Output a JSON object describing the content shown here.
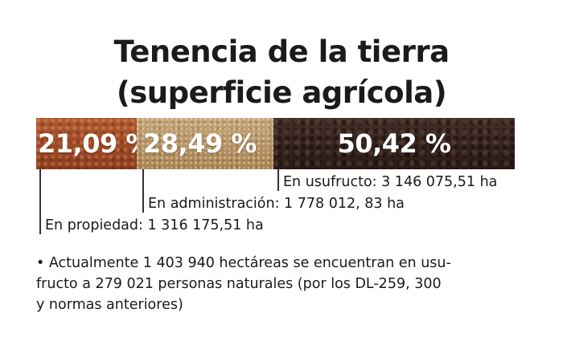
{
  "chart_data": {
    "type": "bar",
    "orientation": "horizontal-stacked",
    "title": "Tenencia de la tierra",
    "subtitle": "(superficie agrícola)",
    "categories": [
      "En propiedad",
      "En administración",
      "En usufructo"
    ],
    "values": [
      21.09,
      28.49,
      50.42
    ],
    "value_labels": [
      "21,09 %",
      "28,49 %",
      "50,42 %"
    ],
    "annotations": [
      "En propiedad: 1 316 175,51 ha",
      "En administración: 1 778 012, 83 ha",
      "En usufructo: 3 146 075,51 ha"
    ],
    "colors": [
      "#a24a25",
      "#b99565",
      "#3a2821"
    ]
  },
  "note": {
    "lines": [
      "• Actualmente 1 403 940 hectáreas se encuentran en usu-",
      "fructo a 279 021 personas naturales (por los DL-259, 300",
      "y normas anteriores)"
    ]
  }
}
